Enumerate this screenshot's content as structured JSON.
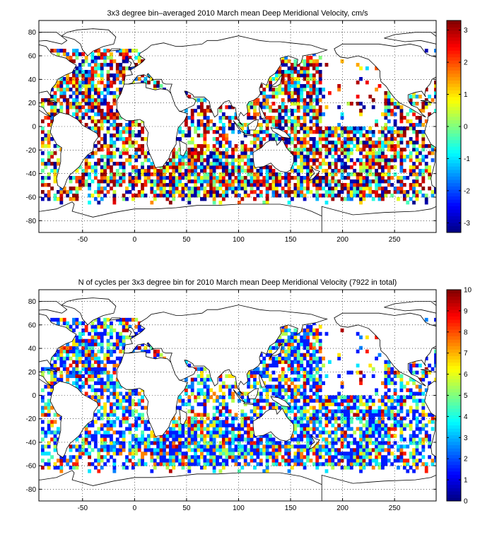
{
  "chart_data": [
    {
      "type": "heatmap",
      "title": "3x3 degree bin–averaged 2010 March mean Deep Meridional Velocity, cm/s",
      "xlabel": "",
      "ylabel": "",
      "xlim": [
        -92,
        290
      ],
      "ylim": [
        -90,
        90
      ],
      "xticks": [
        -50,
        0,
        50,
        100,
        150,
        200,
        250
      ],
      "yticks": [
        -80,
        -60,
        -40,
        -20,
        0,
        20,
        40,
        60,
        80
      ],
      "grid": true,
      "bin_size_deg": 3,
      "colorbar": {
        "range": [
          -3.3,
          3.3
        ],
        "ticks": [
          -3,
          -2,
          -1,
          0,
          1,
          2,
          3
        ],
        "colormap": "jet"
      }
    },
    {
      "type": "heatmap",
      "title": "N of cycles per 3x3 degree bin for 2010 March mean Deep Meridional Velocity (7922 in total)",
      "xlabel": "",
      "ylabel": "",
      "xlim": [
        -92,
        290
      ],
      "ylim": [
        -90,
        90
      ],
      "xticks": [
        -50,
        0,
        50,
        100,
        150,
        200,
        250
      ],
      "yticks": [
        -80,
        -60,
        -40,
        -20,
        0,
        20,
        40,
        60,
        80
      ],
      "grid": true,
      "bin_size_deg": 3,
      "total_cycles": 7922,
      "colorbar": {
        "range": [
          0,
          10
        ],
        "ticks": [
          0,
          1,
          2,
          3,
          4,
          5,
          6,
          7,
          8,
          9,
          10
        ],
        "colormap": "jet"
      }
    }
  ]
}
